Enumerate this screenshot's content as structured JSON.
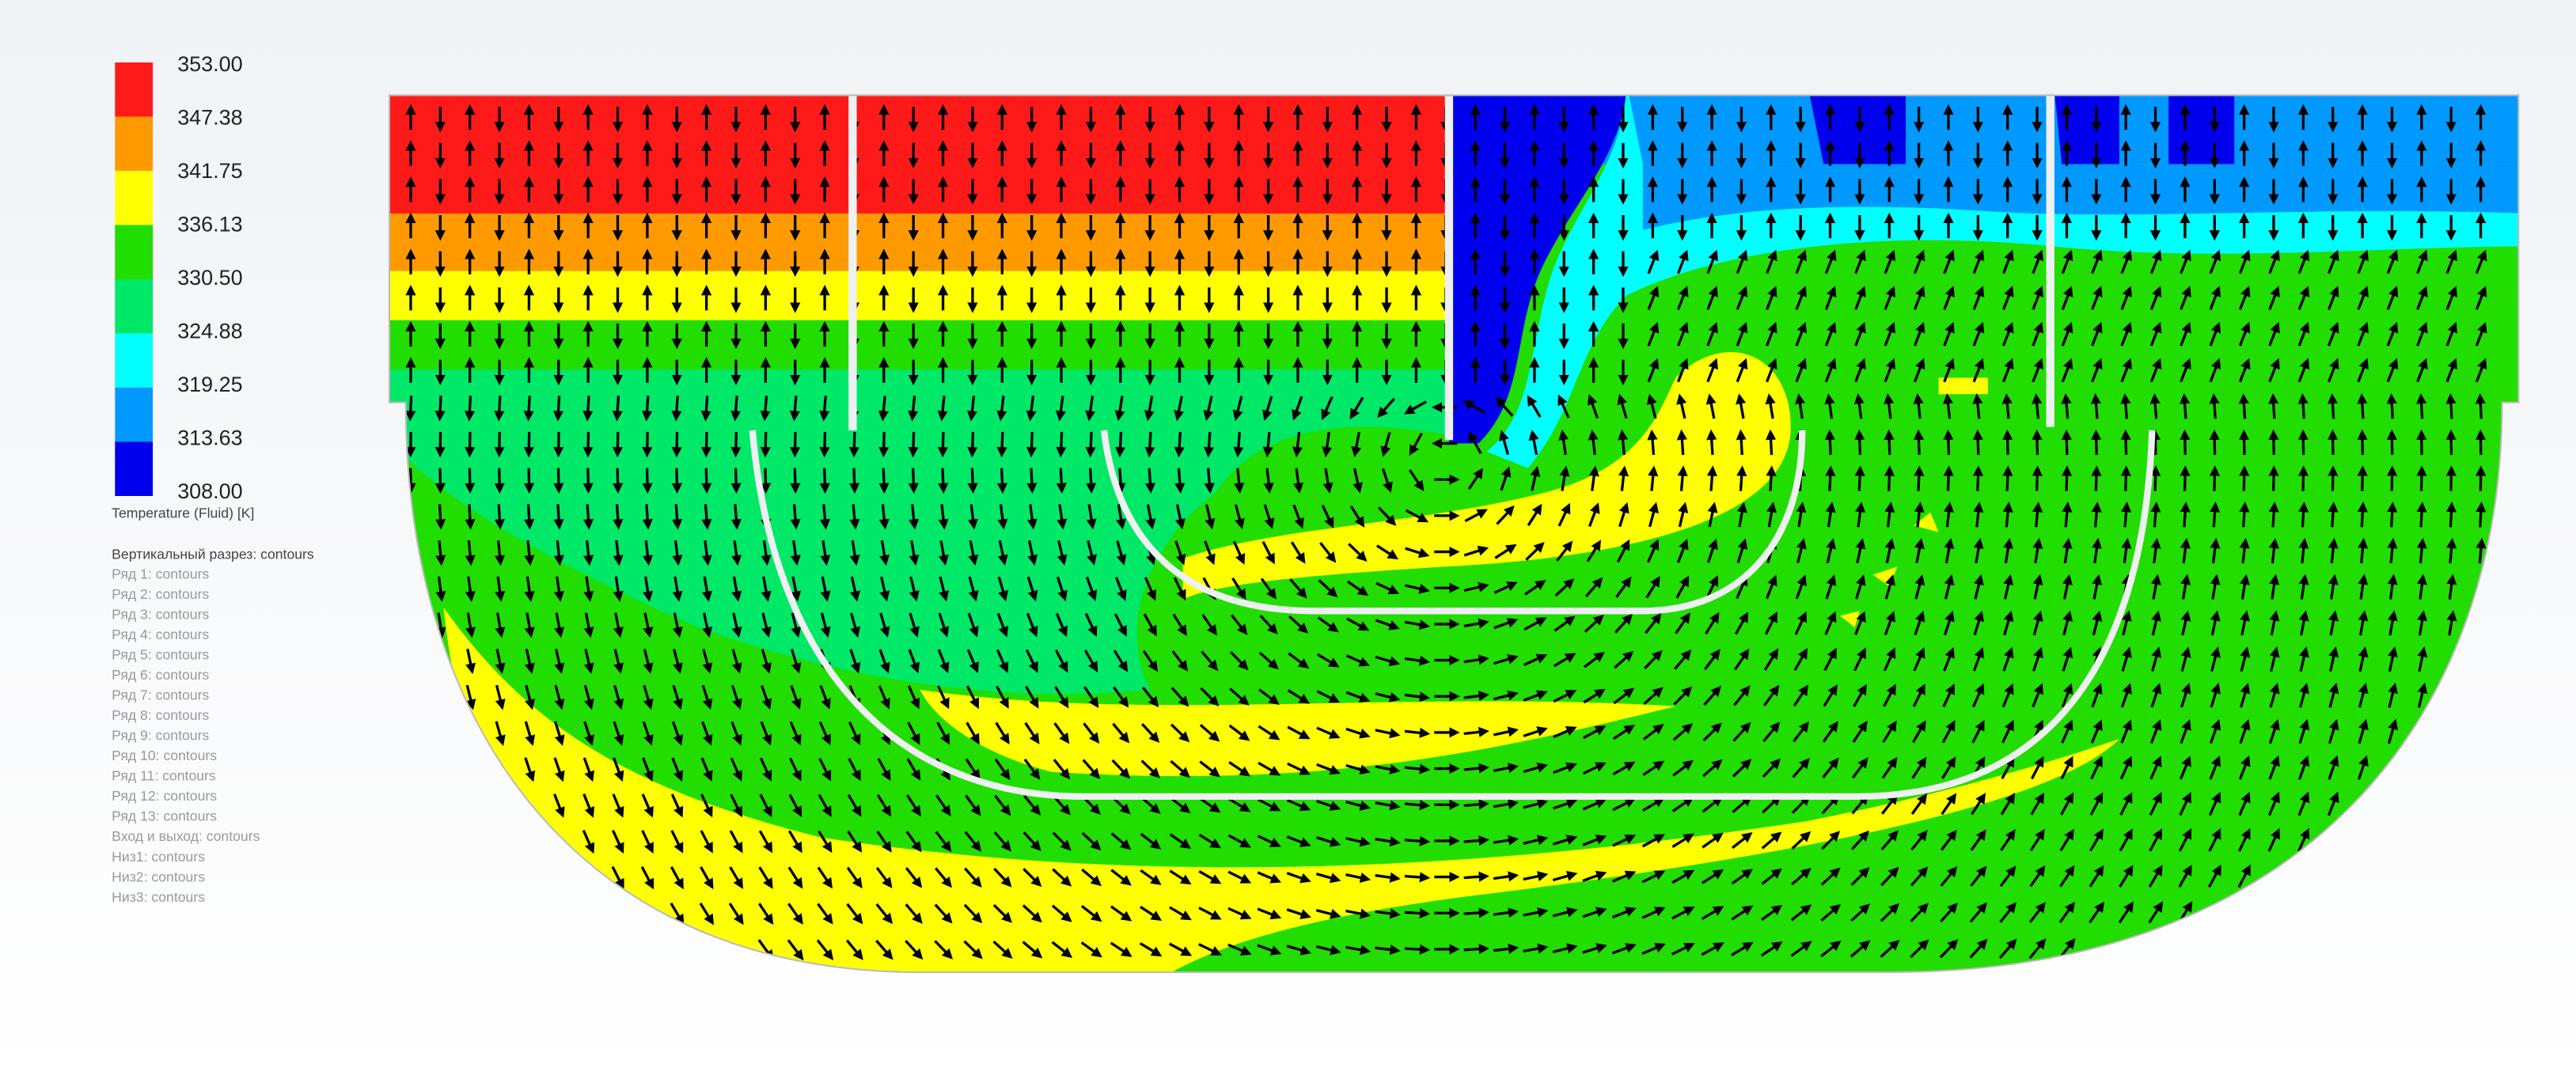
{
  "legend": {
    "ticks": [
      "353.00",
      "347.38",
      "341.75",
      "336.13",
      "330.50",
      "324.88",
      "319.25",
      "313.63",
      "308.00"
    ],
    "title": "Temperature (Fluid) [K]"
  },
  "plots": {
    "header": "Вертикальный разрез: contours",
    "items": [
      "Ряд 1: contours",
      "Ряд 2: contours",
      "Ряд 3: contours",
      "Ряд 4: contours",
      "Ряд 5: contours",
      "Ряд 6: contours",
      "Ряд 7: contours",
      "Ряд 8: contours",
      "Ряд 9: contours",
      "Ряд 10: contours",
      "Ряд 11: contours",
      "Ряд 12: contours",
      "Ряд 13: contours",
      "Вход и выход: contours",
      "Низ1: contours",
      "Низ2: contours",
      "Низ3: contours"
    ]
  }
}
